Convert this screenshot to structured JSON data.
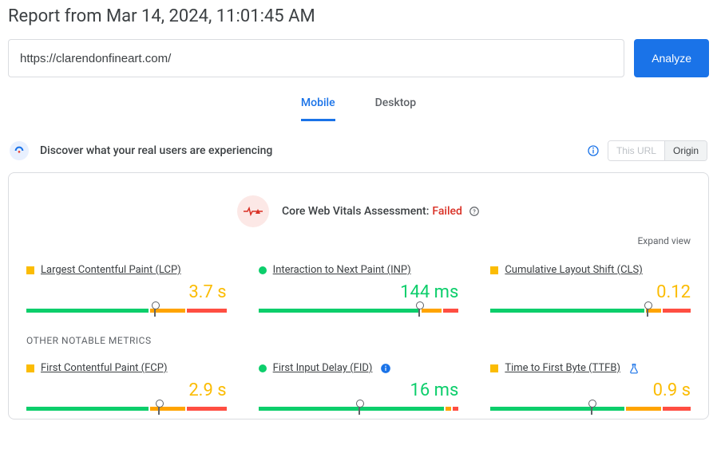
{
  "report_title": "Report from Mar 14, 2024, 11:01:45 AM",
  "url_value": "https://clarendonfineart.com/",
  "analyze_label": "Analyze",
  "tabs": {
    "mobile": "Mobile",
    "desktop": "Desktop"
  },
  "discover_text": "Discover what your real users are experiencing",
  "toggle": {
    "this_url": "This URL",
    "origin": "Origin"
  },
  "assessment": {
    "label": "Core Web Vitals Assessment:",
    "status": "Failed"
  },
  "expand_view": "Expand view",
  "other_title": "OTHER NOTABLE METRICS",
  "colors": {
    "blue": "#1a73e8",
    "green": "#0cce6b",
    "yellow": "#ffa400",
    "orange_ind": "#fbbc04",
    "red": "#ff4e42",
    "fail_red": "#d93025",
    "grey": "#5f6368"
  },
  "metrics_top": [
    {
      "name": "Largest Contentful Paint (LCP)",
      "value": "3.7 s",
      "status": "warn",
      "segments": [
        62,
        18,
        20
      ],
      "pin": 64
    },
    {
      "name": "Interaction to Next Paint (INP)",
      "value": "144 ms",
      "status": "good",
      "segments": [
        82,
        10,
        8
      ],
      "pin": 80
    },
    {
      "name": "Cumulative Layout Shift (CLS)",
      "value": "0.12",
      "status": "warn",
      "segments": [
        78,
        8,
        14
      ],
      "pin": 78
    }
  ],
  "metrics_other": [
    {
      "name": "First Contentful Paint (FCP)",
      "value": "2.9 s",
      "status": "warn",
      "segments": [
        62,
        18,
        20
      ],
      "pin": 66,
      "extra": null
    },
    {
      "name": "First Input Delay (FID)",
      "value": "16 ms",
      "status": "good",
      "segments": [
        94,
        3,
        3
      ],
      "pin": 50,
      "extra": "info"
    },
    {
      "name": "Time to First Byte (TTFB)",
      "value": "0.9 s",
      "status": "warn",
      "segments": [
        68,
        18,
        14
      ],
      "pin": 50,
      "extra": "beaker"
    }
  ]
}
